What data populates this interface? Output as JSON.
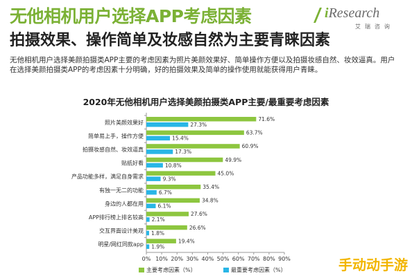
{
  "header": {
    "title": "无他相机用户选择APP考虑因素",
    "subtitle": "拍摄效果、操作简单及妆感自然为主要青睐因素"
  },
  "logo": {
    "main_prefix": "i",
    "main_rest": "Research",
    "sub": "艾瑞咨询"
  },
  "description": {
    "line1": "无他相机用户选择美颜拍摄类APP主要的考虑因素为照片美颜效果好、简单操作方便以及拍摄妆感自然、妆效逼真。用户",
    "line2": "在选择美颜拍摄类APP的考虑因素十分明确，好的拍摄效果及简单的操作使用就能获得用户青睐。"
  },
  "watermark": "手动动手游",
  "colors": {
    "primary_bar": "#8dc63f",
    "secondary_bar": "#29b6e6",
    "title": "#7bb135",
    "axis": "#999999",
    "text": "#333333"
  },
  "chart_data": {
    "type": "bar",
    "orientation": "horizontal",
    "title": "2020年无他相机用户选择美颜拍摄类APP主要/最重要考虑因素",
    "categories": [
      "照片美颜效果好",
      "简单易上手，操作方便",
      "拍摄妆感自然、妆效逼真",
      "贴纸好看",
      "产品功能多样，满足自身需求",
      "有独一无二的功能",
      "身边的人都在用",
      "APP排行榜上排名较高",
      "交互界面设计美观",
      "明星/网红同款app"
    ],
    "series": [
      {
        "name": "主要考虑因素（%）",
        "color": "#8dc63f",
        "values": [
          71.6,
          63.7,
          60.9,
          49.9,
          45.0,
          35.4,
          34.8,
          27.6,
          26.6,
          19.4
        ],
        "labels": [
          "71.6%",
          "63.7%",
          "60.9%",
          "49.9%",
          "45.0%",
          "35.4%",
          "34.8%",
          "27.6%",
          "26.6%",
          "19.4%"
        ]
      },
      {
        "name": "最重要考虑因素（%）",
        "color": "#29b6e6",
        "values": [
          27.3,
          15.4,
          17.3,
          10.8,
          9.3,
          6.7,
          6.1,
          2.1,
          1.8,
          1.9
        ],
        "labels": [
          "27.3%",
          "15.4%",
          "17.3%",
          "10.8%",
          "9.3%",
          "6.7%",
          "6.1%",
          "2.1%",
          "1.8%",
          "1.9%"
        ]
      }
    ],
    "xlim": [
      0,
      90
    ],
    "xticks": [
      0,
      10,
      20,
      30,
      40,
      50,
      60,
      70,
      80,
      90
    ],
    "xtick_labels": [
      "0%",
      "10%",
      "20%",
      "30%",
      "40%",
      "50%",
      "60%",
      "70%",
      "80%",
      "90%"
    ],
    "grid": false,
    "legend_position": "bottom"
  }
}
